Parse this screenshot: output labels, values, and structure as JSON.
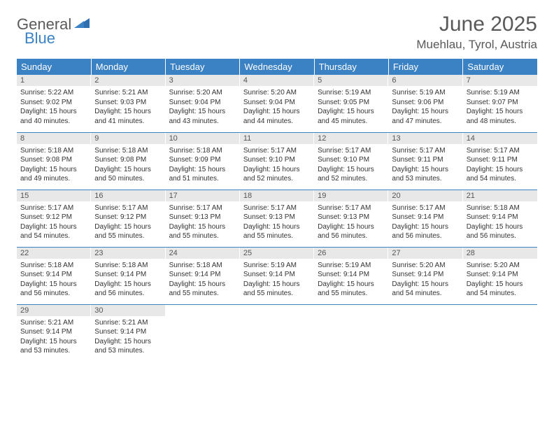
{
  "brand": {
    "part1": "General",
    "part2": "Blue"
  },
  "title": "June 2025",
  "location": "Muehlau, Tyrol, Austria",
  "colors": {
    "header_bg": "#3b82c4",
    "header_fg": "#ffffff",
    "daynum_bg": "#e8e8e8",
    "border": "#3b82c4",
    "text": "#333333",
    "title": "#595959"
  },
  "weekdays": [
    "Sunday",
    "Monday",
    "Tuesday",
    "Wednesday",
    "Thursday",
    "Friday",
    "Saturday"
  ],
  "weeks": [
    [
      {
        "n": "1",
        "sr": "5:22 AM",
        "ss": "9:02 PM",
        "dl": "15 hours and 40 minutes."
      },
      {
        "n": "2",
        "sr": "5:21 AM",
        "ss": "9:03 PM",
        "dl": "15 hours and 41 minutes."
      },
      {
        "n": "3",
        "sr": "5:20 AM",
        "ss": "9:04 PM",
        "dl": "15 hours and 43 minutes."
      },
      {
        "n": "4",
        "sr": "5:20 AM",
        "ss": "9:04 PM",
        "dl": "15 hours and 44 minutes."
      },
      {
        "n": "5",
        "sr": "5:19 AM",
        "ss": "9:05 PM",
        "dl": "15 hours and 45 minutes."
      },
      {
        "n": "6",
        "sr": "5:19 AM",
        "ss": "9:06 PM",
        "dl": "15 hours and 47 minutes."
      },
      {
        "n": "7",
        "sr": "5:19 AM",
        "ss": "9:07 PM",
        "dl": "15 hours and 48 minutes."
      }
    ],
    [
      {
        "n": "8",
        "sr": "5:18 AM",
        "ss": "9:08 PM",
        "dl": "15 hours and 49 minutes."
      },
      {
        "n": "9",
        "sr": "5:18 AM",
        "ss": "9:08 PM",
        "dl": "15 hours and 50 minutes."
      },
      {
        "n": "10",
        "sr": "5:18 AM",
        "ss": "9:09 PM",
        "dl": "15 hours and 51 minutes."
      },
      {
        "n": "11",
        "sr": "5:17 AM",
        "ss": "9:10 PM",
        "dl": "15 hours and 52 minutes."
      },
      {
        "n": "12",
        "sr": "5:17 AM",
        "ss": "9:10 PM",
        "dl": "15 hours and 52 minutes."
      },
      {
        "n": "13",
        "sr": "5:17 AM",
        "ss": "9:11 PM",
        "dl": "15 hours and 53 minutes."
      },
      {
        "n": "14",
        "sr": "5:17 AM",
        "ss": "9:11 PM",
        "dl": "15 hours and 54 minutes."
      }
    ],
    [
      {
        "n": "15",
        "sr": "5:17 AM",
        "ss": "9:12 PM",
        "dl": "15 hours and 54 minutes."
      },
      {
        "n": "16",
        "sr": "5:17 AM",
        "ss": "9:12 PM",
        "dl": "15 hours and 55 minutes."
      },
      {
        "n": "17",
        "sr": "5:17 AM",
        "ss": "9:13 PM",
        "dl": "15 hours and 55 minutes."
      },
      {
        "n": "18",
        "sr": "5:17 AM",
        "ss": "9:13 PM",
        "dl": "15 hours and 55 minutes."
      },
      {
        "n": "19",
        "sr": "5:17 AM",
        "ss": "9:13 PM",
        "dl": "15 hours and 56 minutes."
      },
      {
        "n": "20",
        "sr": "5:17 AM",
        "ss": "9:14 PM",
        "dl": "15 hours and 56 minutes."
      },
      {
        "n": "21",
        "sr": "5:18 AM",
        "ss": "9:14 PM",
        "dl": "15 hours and 56 minutes."
      }
    ],
    [
      {
        "n": "22",
        "sr": "5:18 AM",
        "ss": "9:14 PM",
        "dl": "15 hours and 56 minutes."
      },
      {
        "n": "23",
        "sr": "5:18 AM",
        "ss": "9:14 PM",
        "dl": "15 hours and 56 minutes."
      },
      {
        "n": "24",
        "sr": "5:18 AM",
        "ss": "9:14 PM",
        "dl": "15 hours and 55 minutes."
      },
      {
        "n": "25",
        "sr": "5:19 AM",
        "ss": "9:14 PM",
        "dl": "15 hours and 55 minutes."
      },
      {
        "n": "26",
        "sr": "5:19 AM",
        "ss": "9:14 PM",
        "dl": "15 hours and 55 minutes."
      },
      {
        "n": "27",
        "sr": "5:20 AM",
        "ss": "9:14 PM",
        "dl": "15 hours and 54 minutes."
      },
      {
        "n": "28",
        "sr": "5:20 AM",
        "ss": "9:14 PM",
        "dl": "15 hours and 54 minutes."
      }
    ],
    [
      {
        "n": "29",
        "sr": "5:21 AM",
        "ss": "9:14 PM",
        "dl": "15 hours and 53 minutes."
      },
      {
        "n": "30",
        "sr": "5:21 AM",
        "ss": "9:14 PM",
        "dl": "15 hours and 53 minutes."
      },
      null,
      null,
      null,
      null,
      null
    ]
  ],
  "labels": {
    "sunrise": "Sunrise: ",
    "sunset": "Sunset: ",
    "daylight": "Daylight: "
  }
}
